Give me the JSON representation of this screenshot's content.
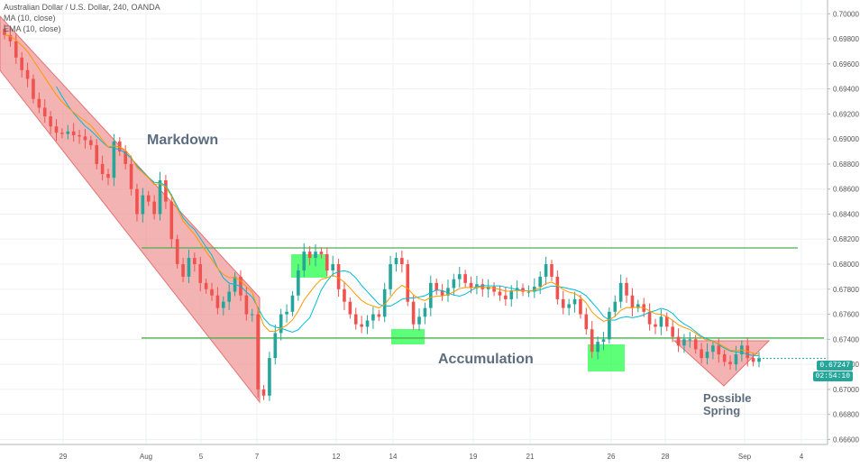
{
  "legend": {
    "symbol": "Australian Dollar / U.S. Dollar, 240, OANDA",
    "ma": "MA (10, close)",
    "ema": "EMA (10, close)"
  },
  "price_tag": {
    "price": "0.67247",
    "countdown": "02:54:10"
  },
  "annotations": {
    "markdown": "Markdown",
    "accumulation": "Accumulation",
    "possible_spring_line1": "Possible",
    "possible_spring_line2": "Spring"
  },
  "colors": {
    "up": "#26a69a",
    "down": "#ef5350",
    "channel_fill": "#ef9a9a",
    "channel_stroke": "#e57373",
    "range_line": "#4caf50",
    "highlight": "#33ff55",
    "ma": "#00bcd4",
    "ema": "#ff9800",
    "annotation_text": "#5d6d7e",
    "grid": "#eef0f3"
  },
  "chart_data": {
    "type": "candlestick",
    "title": "Australian Dollar / U.S. Dollar, 240, OANDA",
    "x_ticks": [
      "29",
      "Aug",
      "5",
      "7",
      "12",
      "14",
      "19",
      "21",
      "26",
      "28",
      "Sep",
      "4"
    ],
    "y_ticks": [
      "0.70000",
      "0.69800",
      "0.69600",
      "0.69400",
      "0.69200",
      "0.69000",
      "0.68800",
      "0.68600",
      "0.68400",
      "0.68200",
      "0.68000",
      "0.67800",
      "0.67600",
      "0.67400",
      "0.67200",
      "0.67000",
      "0.66800",
      "0.66600"
    ],
    "ylim": [
      0.6656,
      0.7011
    ],
    "range_resistance": 0.6813,
    "range_support": 0.6741,
    "last_price": 0.67247,
    "series": [
      {
        "name": "AUD/USD",
        "closes": [
          0.6983,
          0.6978,
          0.6965,
          0.6955,
          0.6948,
          0.6932,
          0.6925,
          0.6918,
          0.691,
          0.6905,
          0.6904,
          0.6906,
          0.6903,
          0.6902,
          0.6899,
          0.6895,
          0.688,
          0.6872,
          0.6869,
          0.6898,
          0.689,
          0.688,
          0.686,
          0.684,
          0.6855,
          0.685,
          0.684,
          0.6867,
          0.685,
          0.682,
          0.68,
          0.679,
          0.6805,
          0.68,
          0.6785,
          0.678,
          0.6775,
          0.6765,
          0.677,
          0.6778,
          0.679,
          0.6775,
          0.676,
          0.676,
          0.67,
          0.6695,
          0.6725,
          0.6745,
          0.676,
          0.6762,
          0.6775,
          0.6795,
          0.681,
          0.6805,
          0.681,
          0.6808,
          0.6795,
          0.68,
          0.678,
          0.677,
          0.676,
          0.6752,
          0.675,
          0.6755,
          0.676,
          0.6758,
          0.678,
          0.68,
          0.6805,
          0.68,
          0.677,
          0.6752,
          0.6758,
          0.6765,
          0.6785,
          0.6779,
          0.6775,
          0.6781,
          0.6788,
          0.6792,
          0.6785,
          0.6781,
          0.6784,
          0.678,
          0.6782,
          0.6778,
          0.6775,
          0.6772,
          0.6779,
          0.6781,
          0.6778,
          0.6778,
          0.6782,
          0.679,
          0.68,
          0.679,
          0.6772,
          0.6765,
          0.6768,
          0.6772,
          0.676,
          0.6748,
          0.673,
          0.6738,
          0.674,
          0.6762,
          0.677,
          0.6785,
          0.6775,
          0.6765,
          0.6768,
          0.6762,
          0.6752,
          0.675,
          0.6758,
          0.675,
          0.6742,
          0.6735,
          0.674,
          0.674,
          0.6732,
          0.6725,
          0.673,
          0.6735,
          0.6728,
          0.6722,
          0.672,
          0.6728,
          0.6735,
          0.6725,
          0.6722,
          0.6725
        ]
      },
      {
        "name": "MA (10, close)"
      },
      {
        "name": "EMA (10, close)"
      }
    ]
  }
}
